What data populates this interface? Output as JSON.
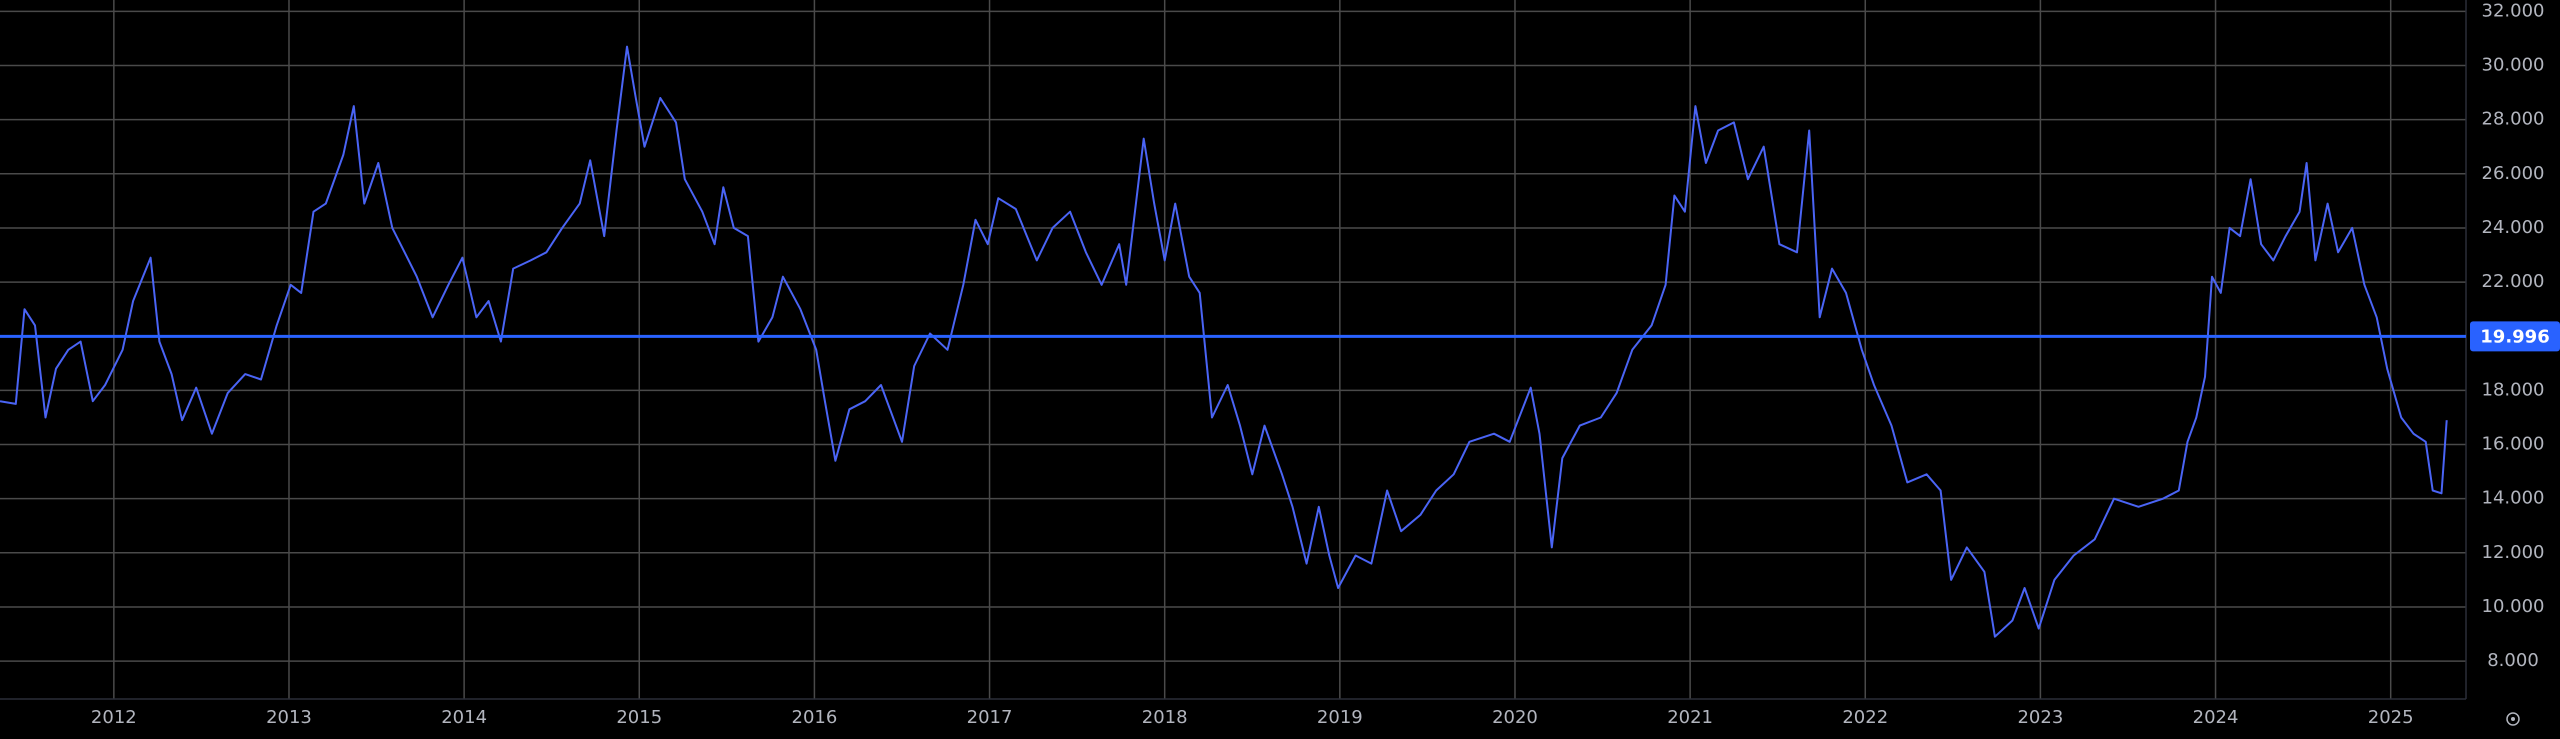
{
  "chart_data": {
    "type": "line",
    "x": [
      2011.35,
      2011.44,
      2011.49,
      2011.55,
      2011.61,
      2011.67,
      2011.74,
      2011.81,
      2011.88,
      2011.95,
      2012.05,
      2012.11,
      2012.21,
      2012.26,
      2012.33,
      2012.39,
      2012.47,
      2012.56,
      2012.65,
      2012.75,
      2012.84,
      2012.93,
      2013.01,
      2013.07,
      2013.14,
      2013.21,
      2013.31,
      2013.37,
      2013.43,
      2013.51,
      2013.59,
      2013.66,
      2013.73,
      2013.82,
      2013.91,
      2013.99,
      2014.07,
      2014.14,
      2014.21,
      2014.28,
      2014.38,
      2014.47,
      2014.56,
      2014.66,
      2014.72,
      2014.8,
      2014.87,
      2014.93,
      2014.98,
      2015.03,
      2015.12,
      2015.21,
      2015.26,
      2015.36,
      2015.43,
      2015.48,
      2015.54,
      2015.62,
      2015.68,
      2015.76,
      2015.82,
      2015.92,
      2016.01,
      2016.06,
      2016.12,
      2016.2,
      2016.29,
      2016.38,
      2016.5,
      2016.57,
      2016.66,
      2016.76,
      2016.85,
      2016.92,
      2016.99,
      2017.05,
      2017.15,
      2017.27,
      2017.36,
      2017.46,
      2017.55,
      2017.64,
      2017.74,
      2017.78,
      2017.88,
      2017.94,
      2018.0,
      2018.06,
      2018.14,
      2018.2,
      2018.27,
      2018.36,
      2018.43,
      2018.5,
      2018.57,
      2018.67,
      2018.73,
      2018.81,
      2018.88,
      2018.94,
      2018.99,
      2019.09,
      2019.18,
      2019.27,
      2019.35,
      2019.46,
      2019.55,
      2019.65,
      2019.74,
      2019.88,
      2019.97,
      2020.09,
      2020.14,
      2020.21,
      2020.27,
      2020.37,
      2020.49,
      2020.58,
      2020.67,
      2020.78,
      2020.86,
      2020.91,
      2020.97,
      2021.03,
      2021.09,
      2021.16,
      2021.25,
      2021.33,
      2021.42,
      2021.51,
      2021.61,
      2021.68,
      2021.74,
      2021.81,
      2021.89,
      2021.98,
      2022.05,
      2022.15,
      2022.24,
      2022.35,
      2022.43,
      2022.49,
      2022.58,
      2022.68,
      2022.74,
      2022.84,
      2022.91,
      2022.99,
      2023.08,
      2023.19,
      2023.31,
      2023.42,
      2023.56,
      2023.7,
      2023.79,
      2023.84,
      2023.89,
      2023.94,
      2023.98,
      2024.03,
      2024.08,
      2024.14,
      2024.2,
      2024.26,
      2024.33,
      2024.4,
      2024.48,
      2024.52,
      2024.57,
      2024.64,
      2024.7,
      2024.78,
      2024.85,
      2024.92,
      2024.98,
      2025.06,
      2025.13,
      2025.2,
      2025.24,
      2025.29,
      2025.32
    ],
    "values": [
      17.6,
      17.5,
      21.0,
      20.4,
      17.0,
      18.8,
      19.5,
      19.8,
      17.6,
      18.2,
      19.5,
      21.3,
      22.9,
      19.8,
      18.6,
      16.9,
      18.1,
      16.4,
      17.9,
      18.6,
      18.4,
      20.4,
      21.9,
      21.6,
      24.6,
      24.9,
      26.7,
      28.5,
      24.9,
      26.4,
      24.0,
      23.1,
      22.2,
      20.7,
      21.9,
      22.9,
      20.7,
      21.3,
      19.8,
      22.5,
      22.8,
      23.1,
      24.0,
      24.9,
      26.5,
      23.7,
      27.6,
      30.7,
      28.8,
      27.0,
      28.8,
      27.9,
      25.8,
      24.6,
      23.4,
      25.5,
      24.0,
      23.7,
      19.8,
      20.7,
      22.2,
      21.0,
      19.5,
      17.6,
      15.4,
      17.3,
      17.6,
      18.2,
      16.1,
      18.9,
      20.1,
      19.5,
      21.9,
      24.3,
      23.4,
      25.1,
      24.7,
      22.8,
      24.0,
      24.6,
      23.1,
      21.9,
      23.4,
      21.9,
      27.3,
      24.9,
      22.8,
      24.9,
      22.2,
      21.6,
      17.0,
      18.2,
      16.7,
      14.9,
      16.7,
      14.9,
      13.7,
      11.6,
      13.7,
      11.9,
      10.7,
      11.9,
      11.6,
      14.3,
      12.8,
      13.4,
      14.3,
      14.9,
      16.1,
      16.4,
      16.1,
      18.1,
      16.4,
      12.2,
      15.5,
      16.7,
      17.0,
      17.9,
      19.5,
      20.4,
      21.9,
      25.2,
      24.6,
      28.5,
      26.4,
      27.6,
      27.9,
      25.8,
      27.0,
      23.4,
      23.1,
      27.6,
      20.7,
      22.5,
      21.6,
      19.5,
      18.2,
      16.7,
      14.6,
      14.9,
      14.3,
      11.0,
      12.2,
      11.3,
      8.9,
      9.5,
      10.7,
      9.2,
      11.0,
      11.9,
      12.5,
      14.0,
      13.7,
      14.0,
      14.3,
      16.1,
      17.0,
      18.5,
      22.2,
      21.6,
      24.0,
      23.7,
      25.8,
      23.4,
      22.8,
      23.7,
      24.6,
      26.4,
      22.8,
      24.9,
      23.1,
      24.0,
      21.9,
      20.7,
      18.8,
      17.0,
      16.4,
      16.1,
      14.3,
      14.2,
      16.9
    ],
    "color": "#4a64f5",
    "xlim": [
      2011.35,
      2025.43
    ],
    "xticks": [
      2012,
      2013,
      2014,
      2015,
      2016,
      2017,
      2018,
      2019,
      2020,
      2021,
      2022,
      2023,
      2024,
      2025
    ],
    "ylim": [
      6.6,
      32.42
    ],
    "yticks": [
      {
        "value": 8,
        "label": "8.000"
      },
      {
        "value": 10,
        "label": "10.000"
      },
      {
        "value": 12,
        "label": "12.000"
      },
      {
        "value": 14,
        "label": "14.000"
      },
      {
        "value": 16,
        "label": "16.000"
      },
      {
        "value": 18,
        "label": "18.000"
      },
      {
        "value": 20,
        "label": "20.000"
      },
      {
        "value": 22,
        "label": "22.000"
      },
      {
        "value": 24,
        "label": "24.000"
      },
      {
        "value": 26,
        "label": "26.000"
      },
      {
        "value": 28,
        "label": "28.000"
      },
      {
        "value": 30,
        "label": "30.000"
      },
      {
        "value": 32,
        "label": "32.000"
      }
    ],
    "grid": true,
    "price_line": {
      "value": 19.996,
      "color": "#2962ff"
    }
  }
}
